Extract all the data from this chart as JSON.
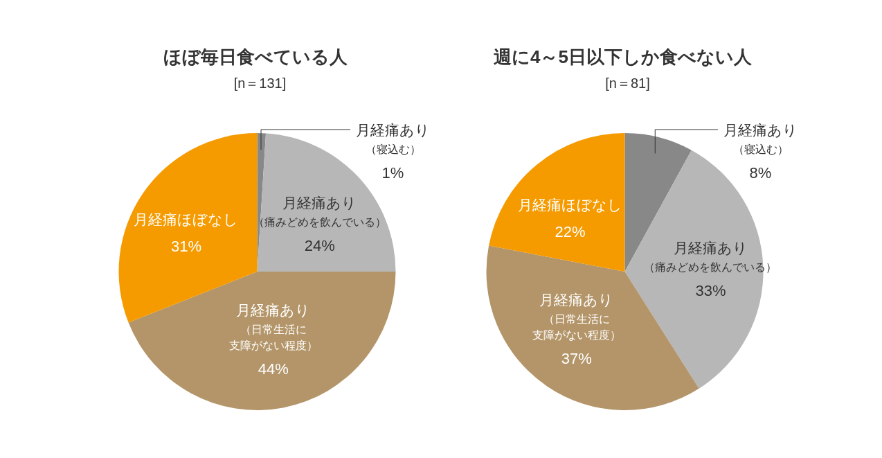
{
  "chart_data": [
    {
      "type": "pie",
      "title": "ほぼ毎日食べている人",
      "subtitle": "[n＝131]",
      "categories": [
        "月経痛あり（寝込む）",
        "月経痛あり（痛みどめを飲んでいる）",
        "月経痛あり（日常生活に支障がない程度）",
        "月経痛ほぼなし"
      ],
      "values": [
        1,
        24,
        44,
        31
      ],
      "value_labels": [
        "1%",
        "24%",
        "44%",
        "31%"
      ],
      "colors": [
        "#888888",
        "#b7b7b7",
        "#b39569",
        "#f59b00"
      ]
    },
    {
      "type": "pie",
      "title": "週に4～5日以下しか食べない人",
      "subtitle": "[n＝81]",
      "categories": [
        "月経痛あり（寝込む）",
        "月経痛あり（痛みどめを飲んでいる）",
        "月経痛あり（日常生活に支障がない程度）",
        "月経痛ほぼなし"
      ],
      "values": [
        8,
        33,
        37,
        22
      ],
      "value_labels": [
        "8%",
        "33%",
        "37%",
        "22%"
      ],
      "colors": [
        "#888888",
        "#b7b7b7",
        "#b39569",
        "#f59b00"
      ]
    }
  ]
}
